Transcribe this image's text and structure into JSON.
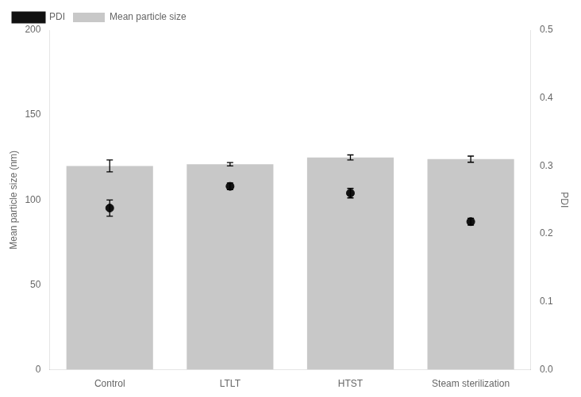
{
  "chart_data": {
    "type": "bar",
    "categories": [
      "Control",
      "LTLT",
      "HTST",
      "Steam sterilization"
    ],
    "series": [
      {
        "name": "Mean particle size",
        "type": "bar",
        "color": "#c8c8c8",
        "values": [
          120,
          121,
          125,
          124
        ],
        "errors": [
          3.5,
          1.0,
          1.5,
          1.8
        ]
      },
      {
        "name": "PDI",
        "type": "scatter",
        "axis": "y2",
        "color": "#111111",
        "marker": "circle",
        "values": [
          0.238,
          0.27,
          0.26,
          0.218
        ],
        "errors": [
          0.012,
          0.005,
          0.007,
          0.005
        ]
      }
    ],
    "ylabel": "Mean particle size (nm)",
    "y2label": "PDI",
    "ylim": [
      0,
      200
    ],
    "yticks": [
      0,
      50,
      100,
      150,
      200
    ],
    "y2lim": [
      0.0,
      0.5
    ],
    "y2ticks": [
      {
        "value": 0.0,
        "label": "0.0"
      },
      0.1,
      0.2,
      0.3,
      0.4,
      0.5
    ],
    "grid": false,
    "legend": "upper left"
  }
}
